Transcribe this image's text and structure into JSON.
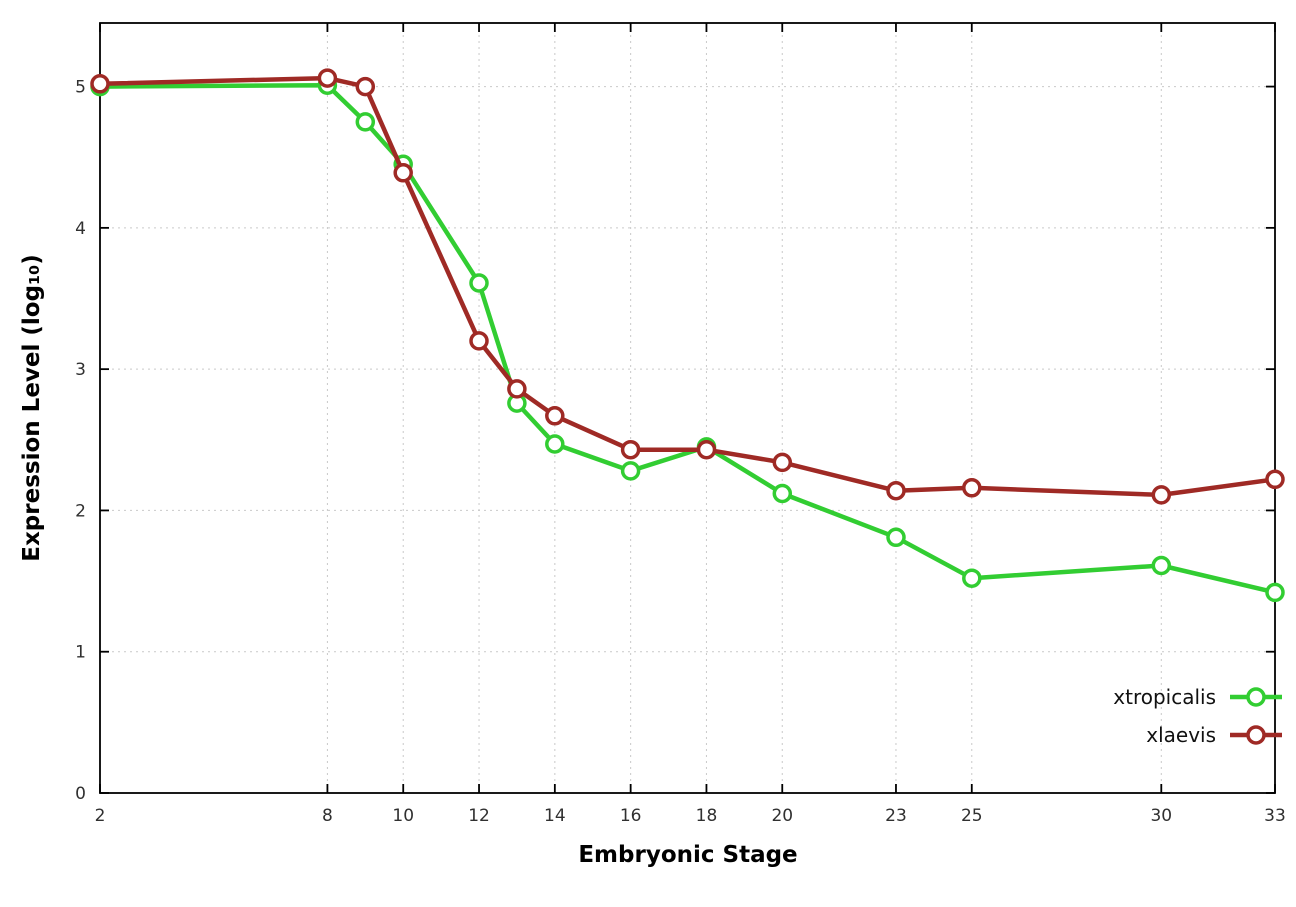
{
  "chart_data": {
    "type": "line",
    "title": "",
    "xlabel": "Embryonic Stage",
    "ylabel": "Expression Level (log₁₀)",
    "xlim": [
      2,
      33
    ],
    "ylim": [
      0,
      5.45
    ],
    "xticks": [
      2,
      8,
      10,
      12,
      14,
      16,
      18,
      20,
      23,
      25,
      30,
      33
    ],
    "yticks": [
      0,
      1,
      2,
      3,
      4,
      5
    ],
    "grid": true,
    "legend_position": "right-middle",
    "x": [
      2,
      8,
      9,
      10,
      12,
      13,
      14,
      16,
      18,
      20,
      23,
      25,
      30,
      33
    ],
    "series": [
      {
        "name": "xtropicalis",
        "color": "#32cd32",
        "values": [
          5.0,
          5.01,
          4.75,
          4.45,
          3.61,
          2.76,
          2.47,
          2.28,
          2.45,
          2.12,
          1.81,
          1.52,
          1.61,
          1.42
        ]
      },
      {
        "name": "xlaevis",
        "color": "#9f2a25",
        "values": [
          5.02,
          5.06,
          5.0,
          4.39,
          3.2,
          2.86,
          2.67,
          2.43,
          2.43,
          2.34,
          2.14,
          2.16,
          2.11,
          2.22
        ]
      }
    ]
  }
}
